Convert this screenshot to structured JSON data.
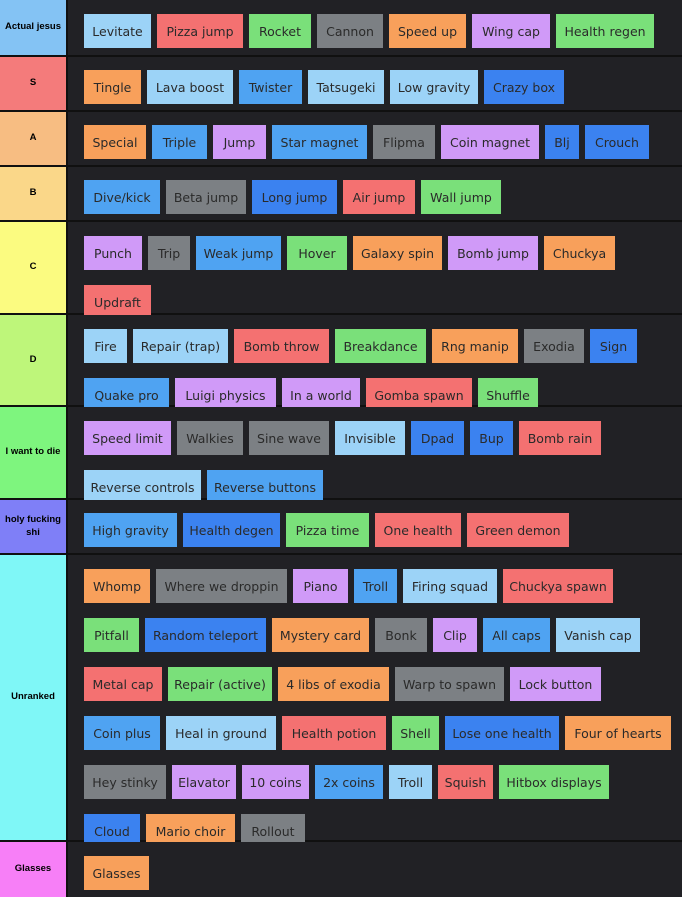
{
  "colors": {
    "blue_light": "#9cd3f7",
    "blue": "#4fa3f2",
    "blue_dark": "#3b82f0",
    "red": "#f47171",
    "green": "#7ae07a",
    "gray": "#7c8084",
    "orange": "#f8a05b",
    "purple": "#d09af8"
  },
  "tiers": [
    {
      "label": "Actual jesus",
      "color": "#84c3f4",
      "items": [
        {
          "text": "Levitate",
          "color": "blue_light"
        },
        {
          "text": "Pizza jump",
          "color": "red"
        },
        {
          "text": "Rocket",
          "color": "green"
        },
        {
          "text": "Cannon",
          "color": "gray"
        },
        {
          "text": "Speed up",
          "color": "orange"
        },
        {
          "text": "Wing cap",
          "color": "purple"
        },
        {
          "text": "Health regen",
          "color": "green"
        }
      ]
    },
    {
      "label": "S",
      "color": "#f47b7b",
      "items": [
        {
          "text": "Tingle",
          "color": "orange"
        },
        {
          "text": "Lava boost",
          "color": "blue_light"
        },
        {
          "text": "Twister",
          "color": "blue"
        },
        {
          "text": "Tatsugeki",
          "color": "blue_light"
        },
        {
          "text": "Low gravity",
          "color": "blue_light"
        },
        {
          "text": "Crazy box",
          "color": "blue_dark"
        }
      ]
    },
    {
      "label": "A",
      "color": "#f7bd82",
      "items": [
        {
          "text": "Special",
          "color": "orange"
        },
        {
          "text": "Triple",
          "color": "blue"
        },
        {
          "text": "Jump",
          "color": "purple"
        },
        {
          "text": "Star magnet",
          "color": "blue"
        },
        {
          "text": "Flipma",
          "color": "gray"
        },
        {
          "text": "Coin magnet",
          "color": "purple"
        },
        {
          "text": "Blj",
          "color": "blue_dark"
        },
        {
          "text": "Crouch",
          "color": "blue_dark"
        }
      ]
    },
    {
      "label": "B",
      "color": "#fad789",
      "items": [
        {
          "text": "Dive/kick",
          "color": "blue"
        },
        {
          "text": "Beta jump",
          "color": "gray"
        },
        {
          "text": "Long jump",
          "color": "blue_dark"
        },
        {
          "text": "Air jump",
          "color": "red"
        },
        {
          "text": "Wall jump",
          "color": "green"
        }
      ]
    },
    {
      "label": "C",
      "color": "#fbfb80",
      "items": [
        {
          "text": "Punch",
          "color": "purple"
        },
        {
          "text": "Trip",
          "color": "gray"
        },
        {
          "text": "Weak jump",
          "color": "blue"
        },
        {
          "text": "Hover",
          "color": "green"
        },
        {
          "text": "Galaxy spin",
          "color": "orange"
        },
        {
          "text": "Bomb jump",
          "color": "purple"
        },
        {
          "text": "Chuckya",
          "color": "orange"
        },
        {
          "text": "Updraft",
          "color": "red"
        }
      ]
    },
    {
      "label": "D",
      "color": "#bef67a",
      "items": [
        {
          "text": "Fire",
          "color": "blue_light"
        },
        {
          "text": "Repair (trap)",
          "color": "blue_light"
        },
        {
          "text": "Bomb throw",
          "color": "red"
        },
        {
          "text": "Breakdance",
          "color": "green"
        },
        {
          "text": "Rng manip",
          "color": "orange"
        },
        {
          "text": "Exodia",
          "color": "gray"
        },
        {
          "text": "Sign",
          "color": "blue_dark"
        },
        {
          "text": "Quake pro",
          "color": "blue"
        },
        {
          "text": "Luigi physics",
          "color": "purple"
        },
        {
          "text": "In a world",
          "color": "purple"
        },
        {
          "text": "Gomba spawn",
          "color": "red"
        },
        {
          "text": "Shuffle",
          "color": "green"
        }
      ]
    },
    {
      "label": "I want to die",
      "color": "#7ef57e",
      "items": [
        {
          "text": "Speed limit",
          "color": "purple"
        },
        {
          "text": "Walkies",
          "color": "gray"
        },
        {
          "text": "Sine wave",
          "color": "gray"
        },
        {
          "text": "Invisible",
          "color": "blue_light"
        },
        {
          "text": "Dpad",
          "color": "blue_dark"
        },
        {
          "text": "Bup",
          "color": "blue_dark"
        },
        {
          "text": "Bomb rain",
          "color": "red"
        },
        {
          "text": "Reverse controls",
          "color": "blue_light"
        },
        {
          "text": "Reverse buttons",
          "color": "blue"
        }
      ]
    },
    {
      "label": "holy fucking shi",
      "color": "#7f7ff7",
      "items": [
        {
          "text": "High gravity",
          "color": "blue"
        },
        {
          "text": "Health degen",
          "color": "blue_dark"
        },
        {
          "text": "Pizza time",
          "color": "green"
        },
        {
          "text": "One health",
          "color": "red"
        },
        {
          "text": "Green demon",
          "color": "red"
        }
      ]
    },
    {
      "label": "Unranked",
      "color": "#7ff7f7",
      "items": [
        {
          "text": "Whomp",
          "color": "orange"
        },
        {
          "text": "Where we droppin",
          "color": "gray"
        },
        {
          "text": "Piano",
          "color": "purple"
        },
        {
          "text": "Troll",
          "color": "blue"
        },
        {
          "text": "Firing squad",
          "color": "blue_light"
        },
        {
          "text": "Chuckya spawn",
          "color": "red"
        },
        {
          "text": "Pitfall",
          "color": "green"
        },
        {
          "text": "Random teleport",
          "color": "blue_dark"
        },
        {
          "text": "Mystery card",
          "color": "orange"
        },
        {
          "text": "Bonk",
          "color": "gray"
        },
        {
          "text": "Clip",
          "color": "purple"
        },
        {
          "text": "All caps",
          "color": "blue"
        },
        {
          "text": "Vanish cap",
          "color": "blue_light"
        },
        {
          "text": "Metal cap",
          "color": "red"
        },
        {
          "text": "Repair (active)",
          "color": "green"
        },
        {
          "text": "4 libs of exodia",
          "color": "orange"
        },
        {
          "text": "Warp to spawn",
          "color": "gray"
        },
        {
          "text": "Lock button",
          "color": "purple"
        },
        {
          "text": "Coin plus",
          "color": "blue"
        },
        {
          "text": "Heal in ground",
          "color": "blue_light"
        },
        {
          "text": "Health potion",
          "color": "red"
        },
        {
          "text": "Shell",
          "color": "green"
        },
        {
          "text": "Lose one health",
          "color": "blue_dark"
        },
        {
          "text": "Four of hearts",
          "color": "orange"
        },
        {
          "text": "Hey stinky",
          "color": "gray"
        },
        {
          "text": "Elavator",
          "color": "purple"
        },
        {
          "text": "10 coins",
          "color": "purple"
        },
        {
          "text": "2x coins",
          "color": "blue"
        },
        {
          "text": "Troll",
          "color": "blue_light"
        },
        {
          "text": "Squish",
          "color": "red"
        },
        {
          "text": "Hitbox displays",
          "color": "green"
        },
        {
          "text": "Cloud",
          "color": "blue_dark"
        },
        {
          "text": "Mario choir",
          "color": "orange"
        },
        {
          "text": "Rollout",
          "color": "gray"
        }
      ]
    },
    {
      "label": "Glasses",
      "color": "#f77ff7",
      "items": [
        {
          "text": "Glasses",
          "color": "orange"
        }
      ]
    }
  ]
}
